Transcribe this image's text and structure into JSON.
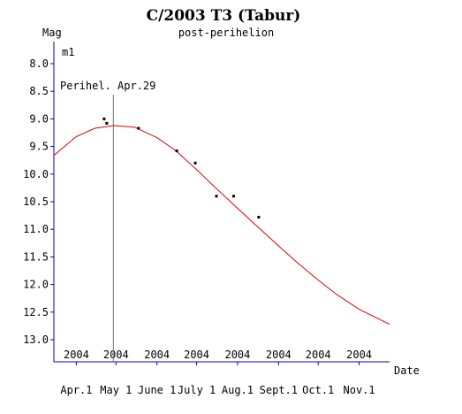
{
  "chart_data": {
    "type": "scatter",
    "title": "C/2003 T3 (Tabur)",
    "subtitle": "post-perihelion",
    "ylabel": "Mag",
    "xlabel": "Date",
    "series_label": "m1",
    "annotation": "Perihel. Apr.29",
    "perihelion_date": "2004-04-29",
    "y_inverted": true,
    "ylim": [
      7.6,
      13.4
    ],
    "xlim": [
      "2004-03-15",
      "2004-11-24"
    ],
    "y_ticks": [
      8.0,
      8.5,
      9.0,
      9.5,
      10.0,
      10.5,
      11.0,
      11.5,
      12.0,
      12.5,
      13.0
    ],
    "y_tick_labels": [
      "8.0",
      "8.5",
      "9.0",
      "9.5",
      "10.0",
      "10.5",
      "11.0",
      "11.5",
      "12.0",
      "12.5",
      "13.0"
    ],
    "x_ticks": [
      {
        "date": "2004-04-01",
        "year": "2004",
        "label": "Apr.1"
      },
      {
        "date": "2004-05-01",
        "year": "2004",
        "label": "May 1"
      },
      {
        "date": "2004-06-01",
        "year": "2004",
        "label": "June 1"
      },
      {
        "date": "2004-07-01",
        "year": "2004",
        "label": "July 1"
      },
      {
        "date": "2004-08-01",
        "year": "2004",
        "label": "Aug.1"
      },
      {
        "date": "2004-09-01",
        "year": "2004",
        "label": "Sept.1"
      },
      {
        "date": "2004-10-01",
        "year": "2004",
        "label": "Oct.1"
      },
      {
        "date": "2004-11-01",
        "year": "2004",
        "label": "Nov.1"
      }
    ],
    "observations": [
      {
        "x": "2004-04-22",
        "y": 9.0
      },
      {
        "x": "2004-04-24",
        "y": 9.08
      },
      {
        "x": "2004-05-18",
        "y": 9.17
      },
      {
        "x": "2004-06-16",
        "y": 9.58
      },
      {
        "x": "2004-06-30",
        "y": 9.8
      },
      {
        "x": "2004-07-16",
        "y": 10.4
      },
      {
        "x": "2004-07-29",
        "y": 10.4
      },
      {
        "x": "2004-08-17",
        "y": 10.78
      }
    ],
    "fit_curve": [
      {
        "x": "2004-03-15",
        "y": 9.66
      },
      {
        "x": "2004-04-01",
        "y": 9.32
      },
      {
        "x": "2004-04-15",
        "y": 9.17
      },
      {
        "x": "2004-04-29",
        "y": 9.12
      },
      {
        "x": "2004-05-15",
        "y": 9.15
      },
      {
        "x": "2004-06-01",
        "y": 9.34
      },
      {
        "x": "2004-06-15",
        "y": 9.57
      },
      {
        "x": "2004-07-01",
        "y": 9.92
      },
      {
        "x": "2004-07-15",
        "y": 10.24
      },
      {
        "x": "2004-08-01",
        "y": 10.62
      },
      {
        "x": "2004-08-15",
        "y": 10.93
      },
      {
        "x": "2004-09-01",
        "y": 11.3
      },
      {
        "x": "2004-09-15",
        "y": 11.6
      },
      {
        "x": "2004-10-01",
        "y": 11.92
      },
      {
        "x": "2004-10-15",
        "y": 12.18
      },
      {
        "x": "2004-11-01",
        "y": 12.45
      },
      {
        "x": "2004-11-24",
        "y": 12.72
      }
    ],
    "colors": {
      "axis": "#0000cc",
      "fit": "#dd0000",
      "points": "#000000",
      "perihelion_line": "#777777"
    },
    "grid": false
  }
}
